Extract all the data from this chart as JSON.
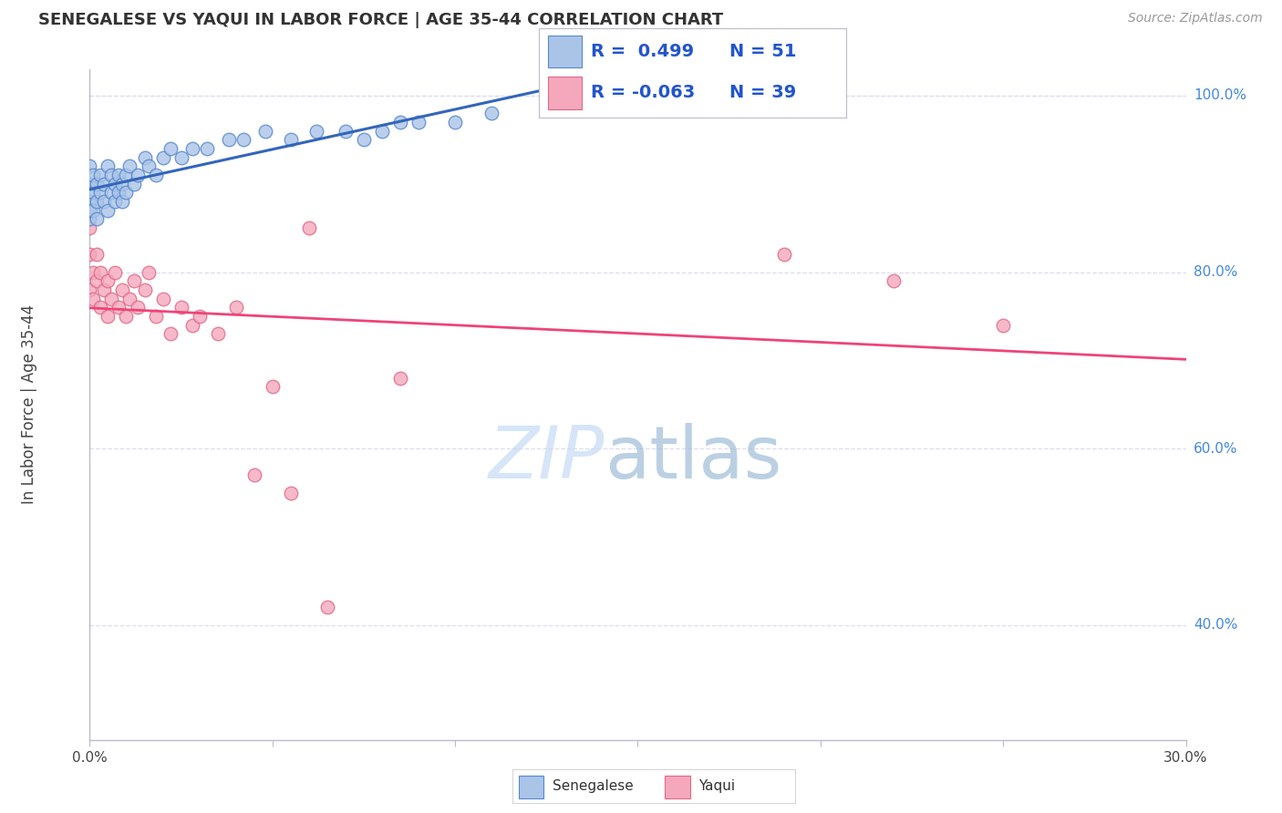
{
  "title": "SENEGALESE VS YAQUI IN LABOR FORCE | AGE 35-44 CORRELATION CHART",
  "source_text": "Source: ZipAtlas.com",
  "ylabel": "In Labor Force | Age 35-44",
  "xlim": [
    0.0,
    0.3
  ],
  "ylim": [
    0.27,
    1.03
  ],
  "y_ticks_right": [
    0.4,
    0.6,
    0.8,
    1.0
  ],
  "y_tick_labels_right": [
    "40.0%",
    "60.0%",
    "80.0%",
    "100.0%"
  ],
  "senegalese_color": "#aac4e8",
  "yaqui_color": "#f5a8bc",
  "senegalese_edge": "#5588cc",
  "yaqui_edge": "#e06888",
  "trend_senegalese_color": "#3366bb",
  "trend_yaqui_color": "#ee4477",
  "background_color": "#ffffff",
  "grid_color": "#ddddee",
  "R_senegalese": 0.499,
  "N_senegalese": 51,
  "R_yaqui": -0.063,
  "N_yaqui": 39,
  "legend_text_color": "#2255cc",
  "senegalese_x": [
    0.0,
    0.0,
    0.0,
    0.0,
    0.0,
    0.001,
    0.001,
    0.001,
    0.002,
    0.002,
    0.002,
    0.003,
    0.003,
    0.004,
    0.004,
    0.005,
    0.005,
    0.006,
    0.006,
    0.007,
    0.007,
    0.008,
    0.008,
    0.009,
    0.009,
    0.01,
    0.01,
    0.011,
    0.012,
    0.013,
    0.015,
    0.016,
    0.018,
    0.02,
    0.022,
    0.025,
    0.028,
    0.032,
    0.038,
    0.042,
    0.048,
    0.055,
    0.062,
    0.07,
    0.075,
    0.08,
    0.085,
    0.09,
    0.1,
    0.11,
    0.13
  ],
  "senegalese_y": [
    0.88,
    0.9,
    0.92,
    0.86,
    0.87,
    0.89,
    0.91,
    0.87,
    0.9,
    0.88,
    0.86,
    0.91,
    0.89,
    0.9,
    0.88,
    0.92,
    0.87,
    0.91,
    0.89,
    0.9,
    0.88,
    0.89,
    0.91,
    0.9,
    0.88,
    0.91,
    0.89,
    0.92,
    0.9,
    0.91,
    0.93,
    0.92,
    0.91,
    0.93,
    0.94,
    0.93,
    0.94,
    0.94,
    0.95,
    0.95,
    0.96,
    0.95,
    0.96,
    0.96,
    0.95,
    0.96,
    0.97,
    0.97,
    0.97,
    0.98,
    1.0
  ],
  "yaqui_x": [
    0.0,
    0.0,
    0.0,
    0.001,
    0.001,
    0.002,
    0.002,
    0.003,
    0.003,
    0.004,
    0.005,
    0.005,
    0.006,
    0.007,
    0.008,
    0.009,
    0.01,
    0.011,
    0.012,
    0.013,
    0.015,
    0.016,
    0.018,
    0.02,
    0.022,
    0.025,
    0.028,
    0.03,
    0.035,
    0.04,
    0.045,
    0.05,
    0.055,
    0.06,
    0.065,
    0.085,
    0.19,
    0.22,
    0.25
  ],
  "yaqui_y": [
    0.78,
    0.82,
    0.85,
    0.8,
    0.77,
    0.79,
    0.82,
    0.76,
    0.8,
    0.78,
    0.75,
    0.79,
    0.77,
    0.8,
    0.76,
    0.78,
    0.75,
    0.77,
    0.79,
    0.76,
    0.78,
    0.8,
    0.75,
    0.77,
    0.73,
    0.76,
    0.74,
    0.75,
    0.73,
    0.76,
    0.57,
    0.67,
    0.55,
    0.85,
    0.42,
    0.68,
    0.82,
    0.79,
    0.74
  ]
}
